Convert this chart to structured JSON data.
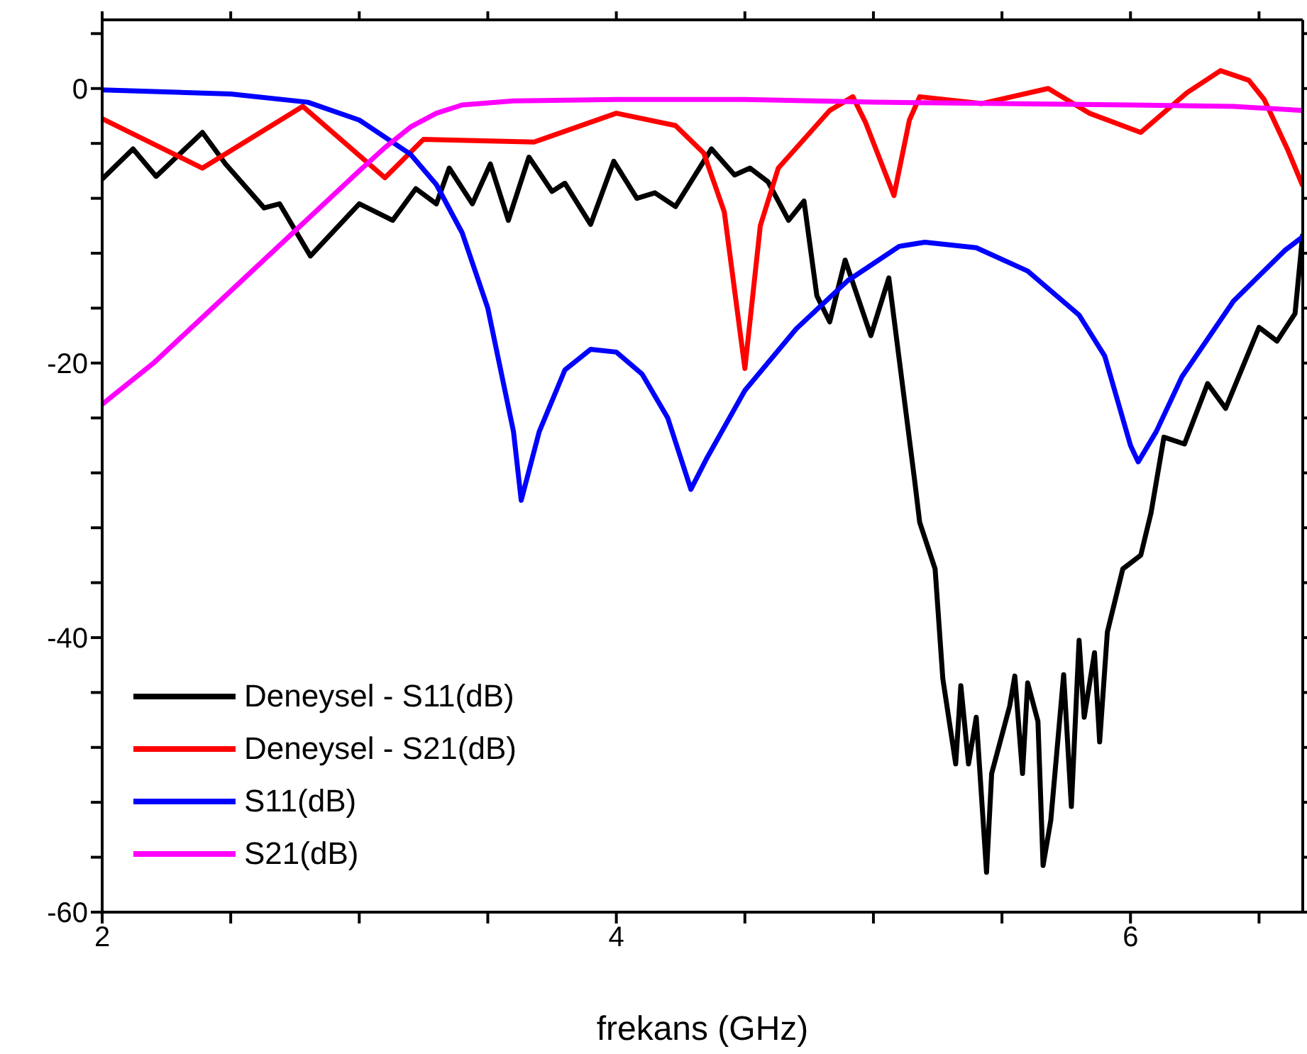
{
  "chart_data": {
    "type": "line",
    "xlabel": "frekans (GHz)",
    "xlim": [
      2,
      6.67
    ],
    "ylim": [
      -60,
      5
    ],
    "xticks": [
      2,
      {
        "value": 2.5,
        "label": null
      },
      {
        "value": 3,
        "label": null
      },
      {
        "value": 3.5,
        "label": null
      },
      4,
      {
        "value": 4.5,
        "label": null
      },
      {
        "value": 5,
        "label": null
      },
      {
        "value": 5.5,
        "label": null
      },
      6,
      {
        "value": 6.5,
        "label": null
      }
    ],
    "yticks": [
      -60,
      {
        "value": -56,
        "label": null
      },
      {
        "value": -52,
        "label": null
      },
      {
        "value": -48,
        "label": null
      },
      {
        "value": -44,
        "label": null
      },
      -40,
      {
        "value": -36,
        "label": null
      },
      {
        "value": -32,
        "label": null
      },
      {
        "value": -28,
        "label": null
      },
      {
        "value": -24,
        "label": null
      },
      -20,
      {
        "value": -16,
        "label": null
      },
      {
        "value": -12,
        "label": null
      },
      {
        "value": -8,
        "label": null
      },
      {
        "value": -4,
        "label": null
      },
      0,
      {
        "value": 4,
        "label": null
      }
    ],
    "grid": false,
    "legend": "bottom left",
    "marker": "none",
    "line_style": "solid",
    "series": [
      {
        "name": "Deneysel - S11(dB)",
        "color": "#000000",
        "x": [
          2.0,
          2.12,
          2.21,
          2.39,
          2.48,
          2.63,
          2.69,
          2.81,
          3.0,
          3.13,
          3.22,
          3.3,
          3.35,
          3.44,
          3.51,
          3.58,
          3.66,
          3.75,
          3.8,
          3.9,
          3.99,
          4.08,
          4.15,
          4.23,
          4.37,
          4.46,
          4.52,
          4.59,
          4.67,
          4.73,
          4.78,
          4.83,
          4.89,
          4.99,
          5.06,
          5.16,
          5.18,
          5.24,
          5.27,
          5.32,
          5.34,
          5.37,
          5.4,
          5.44,
          5.46,
          5.53,
          5.55,
          5.58,
          5.6,
          5.64,
          5.66,
          5.69,
          5.74,
          5.77,
          5.8,
          5.82,
          5.86,
          5.88,
          5.91,
          5.97,
          6.04,
          6.08,
          6.13,
          6.21,
          6.3,
          6.37,
          6.5,
          6.57,
          6.64,
          6.67
        ],
        "values": [
          -6.6,
          -4.4,
          -6.4,
          -3.2,
          -5.5,
          -8.7,
          -8.4,
          -12.2,
          -8.4,
          -9.6,
          -7.3,
          -8.4,
          -5.8,
          -8.4,
          -5.5,
          -9.6,
          -5,
          -7.5,
          -6.9,
          -9.9,
          -5.3,
          -8,
          -7.6,
          -8.6,
          -4.4,
          -6.3,
          -5.8,
          -6.8,
          -9.6,
          -8.2,
          -15.1,
          -17,
          -12.5,
          -18,
          -13.8,
          -28.5,
          -31.6,
          -35,
          -43,
          -49.2,
          -43.5,
          -49.2,
          -45.8,
          -57.1,
          -49.9,
          -45,
          -42.8,
          -49.9,
          -43.3,
          -46.1,
          -56.6,
          -53.3,
          -42.7,
          -52.3,
          -40.2,
          -45.8,
          -41.1,
          -47.6,
          -39.6,
          -35,
          -34,
          -30.9,
          -25.4,
          -25.9,
          -21.5,
          -23.3,
          -17.4,
          -18.4,
          -16.4,
          -10.6
        ]
      },
      {
        "name": "Deneysel - S21(dB)",
        "color": "#ff0000",
        "x": [
          2.0,
          2.39,
          2.78,
          3.1,
          3.25,
          3.68,
          4.0,
          4.23,
          4.34,
          4.42,
          4.5,
          4.56,
          4.63,
          4.83,
          4.92,
          4.97,
          5.08,
          5.14,
          5.18,
          5.42,
          5.68,
          5.84,
          6.04,
          6.22,
          6.35,
          6.46,
          6.52,
          6.61,
          6.67
        ],
        "values": [
          -2.2,
          -5.8,
          -1.3,
          -6.5,
          -3.7,
          -3.9,
          -1.8,
          -2.7,
          -4.7,
          -9,
          -20.4,
          -10,
          -5.8,
          -1.6,
          -0.6,
          -2.5,
          -7.8,
          -2.3,
          -0.6,
          -1.1,
          0,
          -1.8,
          -3.2,
          -0.3,
          1.3,
          0.6,
          -0.8,
          -4.4,
          -7.1
        ]
      },
      {
        "name": "S11(dB)",
        "color": "#0000ff",
        "x": [
          2.0,
          2.5,
          2.8,
          3.0,
          3.2,
          3.3,
          3.4,
          3.5,
          3.6,
          3.63,
          3.7,
          3.8,
          3.9,
          4.0,
          4.1,
          4.2,
          4.29,
          4.35,
          4.5,
          4.7,
          4.9,
          5.1,
          5.2,
          5.4,
          5.6,
          5.8,
          5.9,
          6.0,
          6.03,
          6.1,
          6.2,
          6.4,
          6.6,
          6.67
        ],
        "values": [
          -0.1,
          -0.4,
          -1,
          -2.3,
          -4.8,
          -7,
          -10.5,
          -16,
          -25,
          -30,
          -25,
          -20.5,
          -19,
          -19.2,
          -20.8,
          -24,
          -29.2,
          -27,
          -22,
          -17.5,
          -14,
          -11.5,
          -11.2,
          -11.6,
          -13.3,
          -16.5,
          -19.5,
          -26,
          -27.2,
          -25,
          -21,
          -15.5,
          -11.8,
          -10.8
        ]
      },
      {
        "name": "S21(dB)",
        "color": "#ff00ff",
        "x": [
          2.0,
          2.2,
          2.4,
          2.6,
          2.8,
          3.0,
          3.1,
          3.2,
          3.3,
          3.4,
          3.6,
          4.0,
          4.5,
          5.0,
          5.5,
          6.0,
          6.4,
          6.67
        ],
        "values": [
          -23,
          -20,
          -16.5,
          -13,
          -9.5,
          -6,
          -4.3,
          -2.8,
          -1.8,
          -1.2,
          -0.9,
          -0.8,
          -0.8,
          -1.0,
          -1.1,
          -1.2,
          -1.3,
          -1.6
        ]
      }
    ]
  }
}
